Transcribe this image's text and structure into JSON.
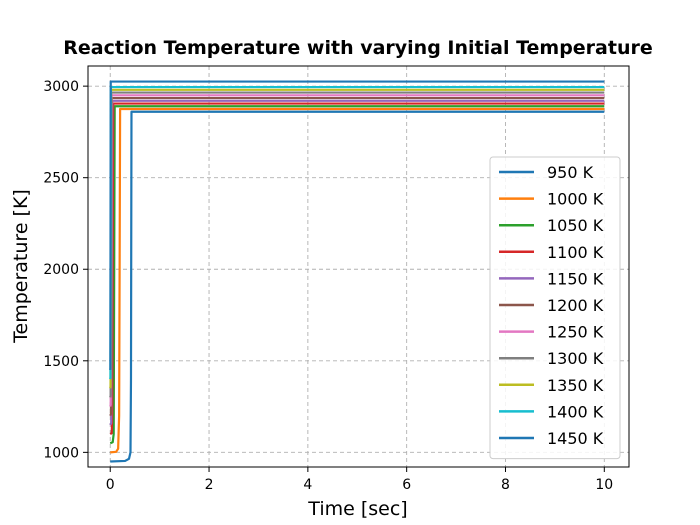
{
  "chart_data": {
    "type": "line",
    "title": "Reaction Temperature with varying Initial Temperature",
    "xlabel": "Time [sec]",
    "ylabel": "Temperature [K]",
    "xlim": [
      -0.45,
      10.5
    ],
    "ylim": [
      920,
      3110
    ],
    "xticks": [
      0,
      2,
      4,
      6,
      8,
      10
    ],
    "yticks": [
      1000,
      1500,
      2000,
      2500,
      3000
    ],
    "grid": true,
    "legend_position": "right",
    "series": [
      {
        "name": "950 K",
        "color": "#1f77b4",
        "x": [
          0,
          0.3,
          0.38,
          0.41,
          0.42,
          0.43,
          10
        ],
        "y": [
          950,
          953,
          965,
          1000,
          1400,
          2860,
          2860
        ]
      },
      {
        "name": "1000 K",
        "color": "#ff7f0e",
        "x": [
          0,
          0.12,
          0.16,
          0.18,
          0.19,
          0.2,
          10
        ],
        "y": [
          1000,
          1003,
          1020,
          1200,
          2000,
          2875,
          2875
        ]
      },
      {
        "name": "1050 K",
        "color": "#2ca02c",
        "x": [
          0,
          0.05,
          0.07,
          0.08,
          0.09,
          10
        ],
        "y": [
          1050,
          1055,
          1100,
          2000,
          2890,
          2890
        ]
      },
      {
        "name": "1100 K",
        "color": "#d62728",
        "x": [
          0,
          0.03,
          0.04,
          0.05,
          0.06,
          10
        ],
        "y": [
          1100,
          1105,
          1200,
          2200,
          2905,
          2905
        ]
      },
      {
        "name": "1150 K",
        "color": "#9467bd",
        "x": [
          0,
          0.02,
          0.03,
          0.04,
          10
        ],
        "y": [
          1150,
          1160,
          1800,
          2920,
          2920
        ]
      },
      {
        "name": "1200 K",
        "color": "#8c564b",
        "x": [
          0,
          0.015,
          0.025,
          0.03,
          10
        ],
        "y": [
          1200,
          1210,
          2000,
          2935,
          2935
        ]
      },
      {
        "name": "1250 K",
        "color": "#e377c2",
        "x": [
          0,
          0.01,
          0.02,
          0.025,
          10
        ],
        "y": [
          1250,
          1260,
          2100,
          2950,
          2950
        ]
      },
      {
        "name": "1300 K",
        "color": "#7f7f7f",
        "x": [
          0,
          0.008,
          0.015,
          0.02,
          10
        ],
        "y": [
          1300,
          1310,
          2200,
          2965,
          2965
        ]
      },
      {
        "name": "1350 K",
        "color": "#bcbd22",
        "x": [
          0,
          0.006,
          0.012,
          0.016,
          10
        ],
        "y": [
          1350,
          1360,
          2300,
          2980,
          2980
        ]
      },
      {
        "name": "1400 K",
        "color": "#17becf",
        "x": [
          0,
          0.004,
          0.009,
          0.012,
          10
        ],
        "y": [
          1400,
          1410,
          2400,
          2995,
          2995
        ]
      },
      {
        "name": "1450 K",
        "color": "#1f77b4",
        "x": [
          0,
          0.003,
          0.007,
          0.01,
          10
        ],
        "y": [
          1450,
          1460,
          2500,
          3025,
          3025
        ]
      }
    ]
  }
}
